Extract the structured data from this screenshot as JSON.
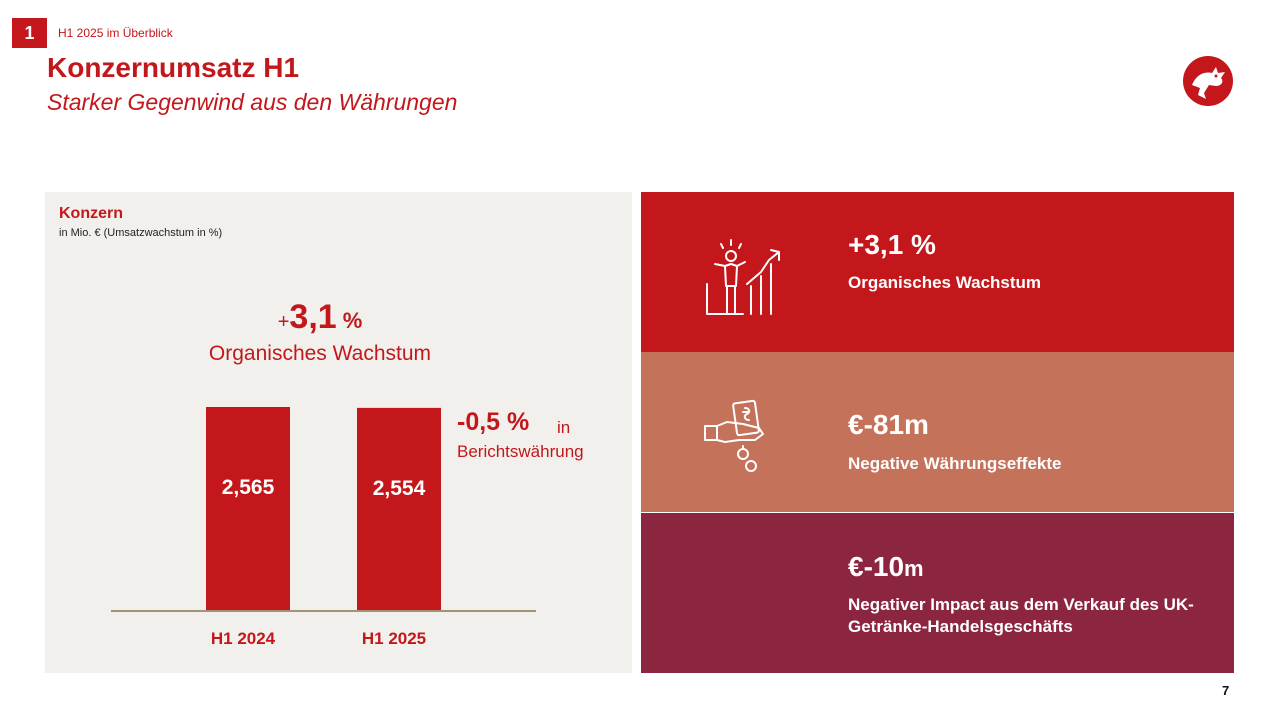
{
  "header": {
    "section_number": "1",
    "breadcrumb": "H1 2025 im Überblick",
    "title": "Konzernumsatz H1",
    "subtitle": "Starker Gegenwind aus den Währungen"
  },
  "panel": {
    "title": "Konzern",
    "unit": "in Mio. € (Umsatzwachstum in %)",
    "growth_plus": "+",
    "growth_value": "3,1",
    "growth_pct": "%",
    "growth_label": "Organisches Wachstum",
    "reported_value": "-0,5 %",
    "reported_in": "in",
    "reported_label": "Berichtswährung"
  },
  "chart_data": {
    "type": "bar",
    "categories": [
      "H1 2024",
      "H1 2025"
    ],
    "values": [
      2565,
      2554
    ],
    "value_labels": [
      "2,565",
      "2,554"
    ],
    "ylim": [
      0,
      2565
    ],
    "grid": false,
    "color": "#c3171b"
  },
  "kpis": [
    {
      "value": "+3,1 %",
      "label": "Organisches Wachstum",
      "icon": "growth-person-icon"
    },
    {
      "value": "€-81m",
      "label": "Negative Währungseffekte",
      "icon": "money-hand-icon"
    },
    {
      "value": "€-10",
      "unit": "m",
      "label": "Negativer Impact aus dem Verkauf des UK-Getränke-Handelsgeschäfts"
    }
  ],
  "footer": {
    "page_number": "7"
  },
  "colors": {
    "brand_red": "#c3171b",
    "salmon": "#c5725a",
    "bordeaux": "#8b2540",
    "panel_bg": "#f2f0ec"
  }
}
